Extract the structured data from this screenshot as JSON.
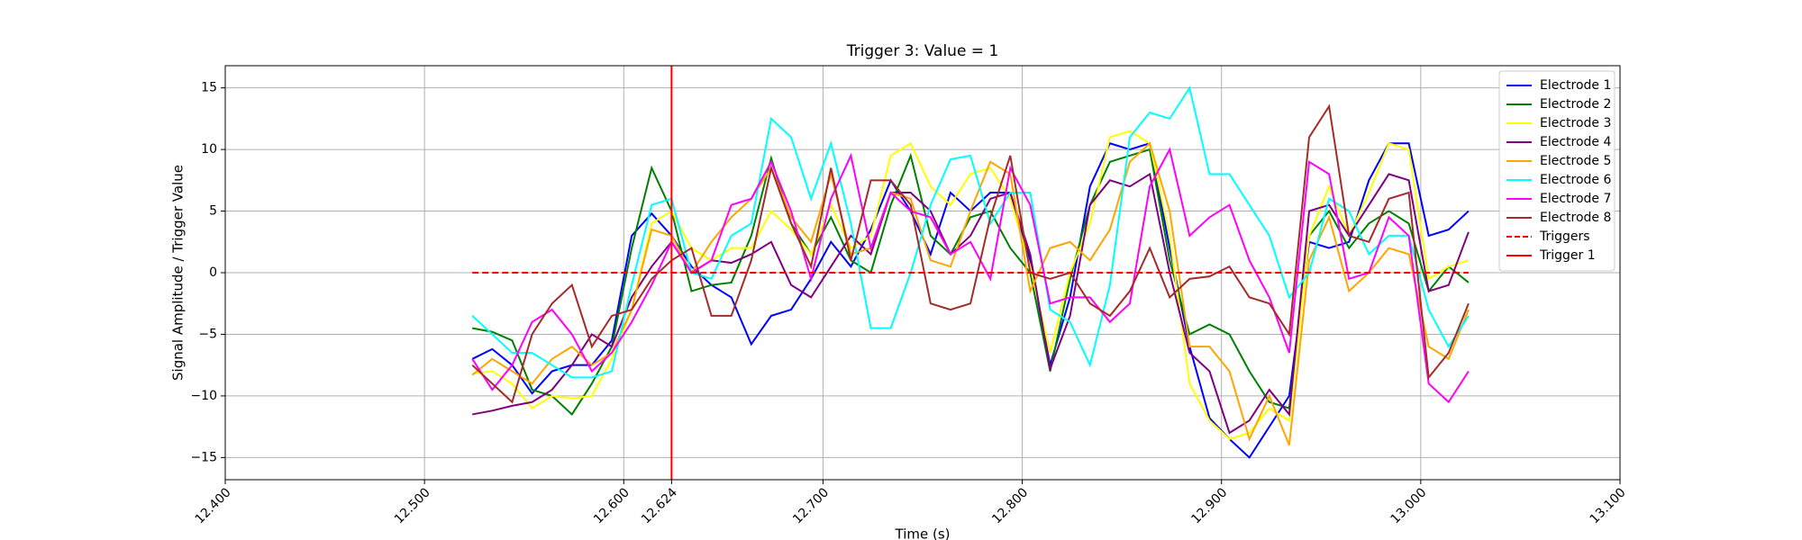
{
  "chart_data": {
    "type": "line",
    "title": "Trigger 3: Value = 1",
    "xlabel": "Time (s)",
    "ylabel": "Signal Amplitude / Trigger Value",
    "xlim": [
      12.4,
      13.1
    ],
    "ylim": [
      -16.8,
      16.8
    ],
    "xticks": [
      {
        "value": 12.4,
        "label": "12.400"
      },
      {
        "value": 12.5,
        "label": "12.500"
      },
      {
        "value": 12.6,
        "label": "12.600"
      },
      12.624,
      {
        "value": 12.7,
        "label": "12.700"
      },
      {
        "value": 12.8,
        "label": "12.800"
      },
      {
        "value": 12.9,
        "label": "12.900"
      },
      {
        "value": 13.0,
        "label": "13.000"
      },
      {
        "value": 13.1,
        "label": "13.100"
      }
    ],
    "yticks": [
      {
        "value": -15,
        "label": "−15"
      },
      {
        "value": -10,
        "label": "−10"
      },
      {
        "value": -5,
        "label": "−5"
      },
      0,
      5,
      10,
      15
    ],
    "grid": true,
    "legend": "upper right",
    "x": [
      12.524,
      12.534,
      12.544,
      12.554,
      12.564,
      12.574,
      12.584,
      12.594,
      12.604,
      12.614,
      12.624,
      12.634,
      12.644,
      12.654,
      12.664,
      12.674,
      12.684,
      12.694,
      12.704,
      12.714,
      12.724,
      12.734,
      12.744,
      12.754,
      12.764,
      12.774,
      12.784,
      12.794,
      12.804,
      12.814,
      12.824,
      12.834,
      12.844,
      12.854,
      12.864,
      12.874,
      12.884,
      12.894,
      12.904,
      12.914,
      12.924,
      12.934,
      12.944,
      12.954,
      12.964,
      12.974,
      12.984,
      12.994,
      13.004,
      13.014,
      13.024
    ],
    "series": [
      {
        "name": "Electrode 1",
        "color": "#0000ff",
        "values": [
          -7,
          -6.2,
          -7.5,
          -9.8,
          -8,
          -7.5,
          -7.5,
          -5.5,
          3,
          4.8,
          3,
          0.5,
          -1,
          -2,
          -5.8,
          -3.5,
          -3,
          -0.5,
          2.5,
          0.5,
          3.5,
          7.5,
          5,
          1.5,
          6.5,
          5,
          6.5,
          6.5,
          1,
          -7.5,
          -2,
          7,
          10.5,
          10,
          10.5,
          2,
          -6,
          -11.8,
          -13.5,
          -15,
          -12.5,
          -10,
          2.5,
          2,
          2.5,
          7.5,
          10.5,
          10.5,
          3,
          3.5,
          5
        ]
      },
      {
        "name": "Electrode 2",
        "color": "#008000",
        "values": [
          -4.5,
          -4.8,
          -5.5,
          -9.5,
          -10,
          -11.5,
          -9,
          -6,
          2,
          8.5,
          5,
          -1.5,
          -1,
          -0.8,
          3,
          9.3,
          4,
          1.5,
          4.5,
          1,
          0,
          5.5,
          9.5,
          3,
          1.5,
          4.5,
          5,
          2,
          0,
          -8,
          -0.5,
          5.5,
          9,
          9.5,
          10,
          1,
          -5,
          -4.2,
          -5,
          -8,
          -10.5,
          -11,
          3,
          5,
          2,
          4,
          5,
          4,
          -1.5,
          0.5,
          -0.8
        ]
      },
      {
        "name": "Electrode 3",
        "color": "#ffff00",
        "values": [
          -8.2,
          -8,
          -9,
          -11,
          -10,
          -10.2,
          -10,
          -7,
          -3,
          4,
          5,
          2,
          1,
          2,
          2,
          5,
          3.5,
          1.5,
          5.5,
          2,
          3,
          9.5,
          10.5,
          7,
          5.5,
          8,
          8.5,
          6,
          0.5,
          -6.5,
          0,
          4,
          11,
          11.5,
          10.5,
          3,
          -9,
          -12,
          -13.5,
          -13,
          -11,
          -12,
          3,
          7,
          3,
          6.5,
          10.5,
          10,
          -0.5,
          0.5,
          1
        ]
      },
      {
        "name": "Electrode 4",
        "color": "#800080",
        "values": [
          -11.5,
          -11.2,
          -10.8,
          -10.5,
          -9.5,
          -7.5,
          -5,
          -6,
          -2,
          0.5,
          2.5,
          0,
          1,
          0.8,
          1.5,
          2.5,
          -1,
          -2,
          0.5,
          3,
          1.5,
          6.5,
          6.5,
          5,
          1.5,
          3,
          6,
          6.5,
          1.5,
          -7.8,
          -3.5,
          5.5,
          7.5,
          7,
          8,
          0,
          -6.5,
          -8,
          -13,
          -12,
          -9.5,
          -11.5,
          5,
          5.5,
          3,
          5.5,
          8,
          7.5,
          -1.5,
          -1,
          3.3
        ]
      },
      {
        "name": "Electrode 5",
        "color": "#ffa500",
        "values": [
          -8.3,
          -7,
          -8,
          -9,
          -7,
          -6,
          -7.5,
          -6.5,
          -3,
          3.5,
          3,
          0,
          2.5,
          4.5,
          6,
          8.5,
          4.5,
          2.5,
          8,
          1.5,
          2,
          6.5,
          6,
          1,
          0.5,
          5,
          9,
          8,
          -1.5,
          2,
          2.5,
          1,
          3.5,
          9,
          10.5,
          5,
          -6,
          -6,
          -8,
          -13.5,
          -10,
          -14,
          1,
          4.5,
          -1.5,
          0,
          2,
          1.5,
          -6,
          -7,
          -3
        ]
      },
      {
        "name": "Electrode 6",
        "color": "#00ffff",
        "values": [
          -3.5,
          -5,
          -6.5,
          -6.5,
          -7.5,
          -8.5,
          -8.5,
          -8,
          -1,
          5.5,
          6,
          0,
          -0.5,
          3,
          4,
          12.5,
          11,
          6,
          10.5,
          4,
          -4.5,
          -4.5,
          0,
          5.5,
          9.2,
          9.5,
          4,
          6.5,
          6.5,
          -3,
          -4,
          -7.5,
          -1,
          11,
          13,
          12.5,
          15,
          8,
          8,
          5.5,
          3,
          -2,
          0,
          6,
          5,
          1.5,
          3,
          3,
          -3,
          -6,
          -3.5
        ]
      },
      {
        "name": "Electrode 7",
        "color": "#ff00ff",
        "values": [
          -7,
          -9.5,
          -7.5,
          -4,
          -3,
          -5,
          -8,
          -6.5,
          -4,
          -1,
          2.5,
          0,
          1,
          5.5,
          6,
          9,
          5,
          -0.5,
          6,
          9.5,
          2,
          6.5,
          5,
          4.5,
          1.5,
          2.5,
          -0.5,
          8.5,
          5.5,
          -2.5,
          -2,
          -2,
          -4,
          -2.5,
          7,
          10,
          3,
          4.5,
          5.5,
          1,
          -2,
          -6.5,
          9,
          8,
          -0.5,
          0,
          4.5,
          3,
          -9,
          -10.5,
          -8
        ]
      },
      {
        "name": "Electrode 8",
        "color": "#a52a2a",
        "values": [
          -7.5,
          -9,
          -10.5,
          -5,
          -2.5,
          -1,
          -6,
          -3.5,
          -3,
          -0.5,
          1,
          2,
          -3.5,
          -3.5,
          1,
          8.5,
          4,
          0.5,
          8.5,
          1,
          7.5,
          7.5,
          5.5,
          -2.5,
          -3,
          -2.5,
          4.5,
          9.5,
          0,
          -0.5,
          0,
          -2.5,
          -3.5,
          -1.5,
          2,
          -2,
          -0.5,
          -0.3,
          0.5,
          -2,
          -2.5,
          -5,
          11,
          13.5,
          3,
          2.5,
          6,
          6.5,
          -8.5,
          -6.5,
          -2.5
        ]
      }
    ],
    "triggers": {
      "name": "Triggers",
      "color": "#ff0000",
      "x": [
        12.524,
        13.024
      ],
      "values": [
        0,
        0
      ]
    },
    "trigger_line": {
      "name": "Trigger 1",
      "color": "#ff0000",
      "x": 12.624
    }
  }
}
